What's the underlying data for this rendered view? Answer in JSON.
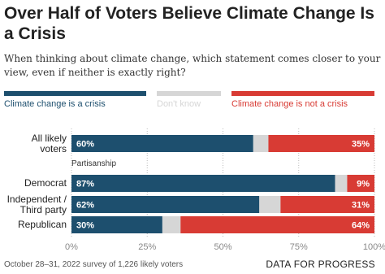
{
  "chart_data": {
    "type": "stacked_bar_horizontal",
    "title": "Over Half of Voters Believe Climate Change Is a Crisis",
    "subtitle": "When thinking about climate change, which statement comes closer to your view, even if neither is exactly right?",
    "categories": [
      "All likely\nvoters",
      "Democrat",
      "Independent /\nThird party",
      "Republican"
    ],
    "group_label": "Partisanship",
    "series": [
      {
        "name": "Climate change is a crisis",
        "color": "#1d4f6e",
        "values": [
          60,
          87,
          62,
          30
        ],
        "value_labels": [
          "60%",
          "87%",
          "62%",
          "30%"
        ]
      },
      {
        "name": "Don't know",
        "color": "#d6d6d6",
        "values": [
          5,
          4,
          7,
          6
        ]
      },
      {
        "name": "Climate change is not a crisis",
        "color": "#d83b34",
        "values": [
          35,
          9,
          31,
          64
        ],
        "value_labels": [
          "35%",
          "9%",
          "31%",
          "64%"
        ]
      }
    ],
    "xlim": [
      0,
      100
    ],
    "xticks": [
      {
        "value": 0,
        "label": "0%"
      },
      {
        "value": 25,
        "label": "25%"
      },
      {
        "value": 50,
        "label": "50%"
      },
      {
        "value": 75,
        "label": "75%"
      },
      {
        "value": 100,
        "label": "100%"
      }
    ],
    "grid": true,
    "source": "October 28–31, 2022 survey of 1,226 likely voters",
    "logo": "DATA FOR PROGRESS"
  }
}
